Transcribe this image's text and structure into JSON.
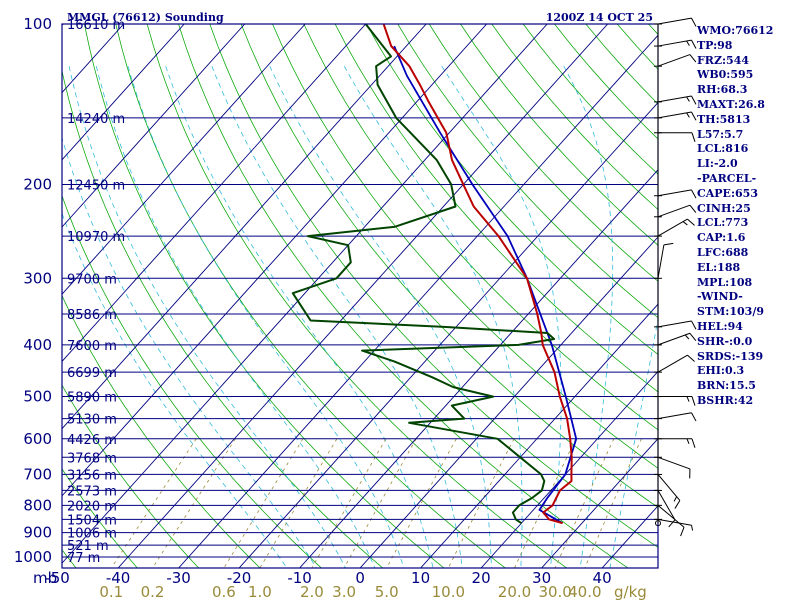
{
  "header": {
    "station": "MMGL (76612) Sounding",
    "time": "1200Z 14 OCT 25"
  },
  "indices": [
    "WMO:76612",
    "TP:98",
    "FRZ:544",
    "WB0:595",
    "RH:68.3",
    "MAXT:26.8",
    "TH:5813",
    "L57:5.7",
    "LCL:816",
    "LI:-2.0",
    "-PARCEL-",
    "CAPE:653",
    "CINH:25",
    "LCL:773",
    "CAP:1.6",
    "LFC:688",
    "EL:188",
    "MPL:108",
    "-WIND-",
    "STM:103/9",
    "HEL:94",
    "SHR-:0.0",
    "SRDS:-139",
    "EHI:0.3",
    "BRN:15.5",
    "BSHR:42"
  ],
  "colors": {
    "frame": "#000080",
    "isobar": "#000080",
    "isotherm": "#000080",
    "dry_adiabat": "#11aa11",
    "moist_adiabat": "#33bbdd",
    "mixing_ratio": "#9a8b3a",
    "temperature": "#bb0000",
    "dewpoint": "#004400",
    "parcel": "#0000bb",
    "wind": "#000000"
  },
  "chart_data": {
    "type": "skew-t",
    "pressure_axis_label": "mb",
    "mixing_ratio_unit": "g/kg",
    "pressure_levels": [
      100,
      200,
      300,
      400,
      500,
      600,
      700,
      800,
      900,
      1000
    ],
    "height_labels": [
      {
        "p": 100,
        "text": "16610 m"
      },
      {
        "p": 150,
        "text": "14240 m"
      },
      {
        "p": 200,
        "text": "12450 m"
      },
      {
        "p": 250,
        "text": "10970 m"
      },
      {
        "p": 300,
        "text": "9700 m"
      },
      {
        "p": 350,
        "text": "8586 m"
      },
      {
        "p": 400,
        "text": "7600 m"
      },
      {
        "p": 450,
        "text": "6699 m"
      },
      {
        "p": 500,
        "text": "5890 m"
      },
      {
        "p": 550,
        "text": "5130 m"
      },
      {
        "p": 600,
        "text": "4426 m"
      },
      {
        "p": 650,
        "text": "3768 m"
      },
      {
        "p": 700,
        "text": "3156 m"
      },
      {
        "p": 750,
        "text": "2573 m"
      },
      {
        "p": 800,
        "text": "2020 m"
      },
      {
        "p": 850,
        "text": "1504 m"
      },
      {
        "p": 900,
        "text": "1006 m"
      },
      {
        "p": 950,
        "text": "521 m"
      },
      {
        "p": 1000,
        "text": "77 m"
      }
    ],
    "temp_ticks": [
      -50,
      -40,
      -30,
      -20,
      -10,
      0,
      10,
      20,
      30,
      40
    ],
    "mixing_ratio_ticks": [
      {
        "label": "0.1",
        "w": 0.1
      },
      {
        "label": "0.2",
        "w": 0.2
      },
      {
        "label": "0.6",
        "w": 0.6
      },
      {
        "label": "1.0",
        "w": 1.0
      },
      {
        "label": "2.0",
        "w": 2.0
      },
      {
        "label": "3.0",
        "w": 3.0
      },
      {
        "label": "5.0",
        "w": 5.0
      },
      {
        "label": "10.0",
        "w": 10.0
      },
      {
        "label": "20.0",
        "w": 20.0
      },
      {
        "label": "30.0",
        "w": 30.0
      },
      {
        "label": "40.0",
        "w": 40.0
      }
    ],
    "temperature_profile": [
      [
        864,
        26.8
      ],
      [
        850,
        24.0
      ],
      [
        825,
        22.0
      ],
      [
        800,
        22.5
      ],
      [
        775,
        22.0
      ],
      [
        750,
        21.5
      ],
      [
        720,
        22.0
      ],
      [
        700,
        21.0
      ],
      [
        650,
        18.5
      ],
      [
        600,
        15.5
      ],
      [
        550,
        12.0
      ],
      [
        500,
        7.5
      ],
      [
        450,
        3.0
      ],
      [
        400,
        -3.0
      ],
      [
        380,
        -5.0
      ],
      [
        350,
        -8.5
      ],
      [
        300,
        -15.5
      ],
      [
        250,
        -26.5
      ],
      [
        220,
        -35.0
      ],
      [
        200,
        -40.0
      ],
      [
        180,
        -45.5
      ],
      [
        160,
        -50.5
      ],
      [
        140,
        -58.0
      ],
      [
        130,
        -62.0
      ],
      [
        120,
        -66.5
      ],
      [
        110,
        -72.5
      ],
      [
        98,
        -78.0
      ]
    ],
    "dewpoint_profile": [
      [
        864,
        20.0
      ],
      [
        850,
        18.5
      ],
      [
        825,
        17.0
      ],
      [
        800,
        17.0
      ],
      [
        775,
        18.0
      ],
      [
        750,
        18.5
      ],
      [
        720,
        17.5
      ],
      [
        700,
        16.0
      ],
      [
        650,
        10.0
      ],
      [
        600,
        3.5
      ],
      [
        560,
        -13.5
      ],
      [
        550,
        -5.0
      ],
      [
        520,
        -9.0
      ],
      [
        500,
        -3.5
      ],
      [
        480,
        -11.5
      ],
      [
        460,
        -16.5
      ],
      [
        430,
        -25.0
      ],
      [
        410,
        -32.0
      ],
      [
        400,
        -7.0
      ],
      [
        390,
        -2.0
      ],
      [
        380,
        -4.0
      ],
      [
        370,
        -22.0
      ],
      [
        360,
        -45.0
      ],
      [
        320,
        -52.0
      ],
      [
        300,
        -47.0
      ],
      [
        280,
        -47.0
      ],
      [
        260,
        -50.0
      ],
      [
        250,
        -58.0
      ],
      [
        240,
        -45.0
      ],
      [
        220,
        -38.0
      ],
      [
        200,
        -42.0
      ],
      [
        180,
        -48.0
      ],
      [
        150,
        -61.0
      ],
      [
        130,
        -69.0
      ],
      [
        120,
        -72.0
      ],
      [
        115,
        -71.0
      ],
      [
        100,
        -80.0
      ]
    ],
    "parcel_profile": [
      [
        864,
        26.8
      ],
      [
        816,
        21.0
      ],
      [
        773,
        20.5
      ],
      [
        700,
        20.0
      ],
      [
        600,
        16.5
      ],
      [
        500,
        8.5
      ],
      [
        400,
        -1.5
      ],
      [
        300,
        -15.5
      ],
      [
        250,
        -25.0
      ],
      [
        200,
        -38.5
      ],
      [
        160,
        -51.5
      ],
      [
        125,
        -65.5
      ],
      [
        110,
        -72.0
      ]
    ],
    "wind_barbs": [
      {
        "p": 850,
        "dir": 100,
        "spd": 5
      },
      {
        "p": 800,
        "dir": 130,
        "spd": 10
      },
      {
        "p": 750,
        "dir": 150,
        "spd": 10
      },
      {
        "p": 700,
        "dir": 140,
        "spd": 15
      },
      {
        "p": 650,
        "dir": 110,
        "spd": 10
      },
      {
        "p": 600,
        "dir": 90,
        "spd": 15
      },
      {
        "p": 550,
        "dir": 80,
        "spd": 10
      },
      {
        "p": 500,
        "dir": 90,
        "spd": 15
      },
      {
        "p": 450,
        "dir": 60,
        "spd": 10
      },
      {
        "p": 400,
        "dir": 70,
        "spd": 15
      },
      {
        "p": 370,
        "dir": 80,
        "spd": 10
      },
      {
        "p": 300,
        "dir": 10,
        "spd": 10
      },
      {
        "p": 250,
        "dir": 60,
        "spd": 15
      },
      {
        "p": 230,
        "dir": 70,
        "spd": 10
      },
      {
        "p": 210,
        "dir": 80,
        "spd": 10
      },
      {
        "p": 160,
        "dir": 90,
        "spd": 10
      },
      {
        "p": 150,
        "dir": 80,
        "spd": 15
      },
      {
        "p": 140,
        "dir": 80,
        "spd": 15
      },
      {
        "p": 120,
        "dir": 70,
        "spd": 10
      },
      {
        "p": 110,
        "dir": 80,
        "spd": 15
      },
      {
        "p": 100,
        "dir": 80,
        "spd": 10
      }
    ]
  }
}
